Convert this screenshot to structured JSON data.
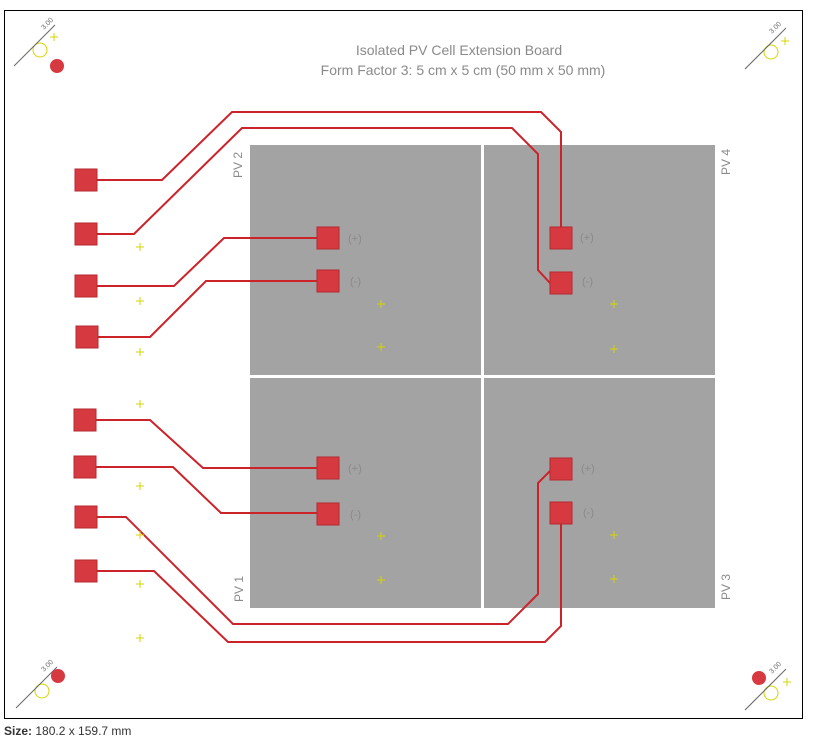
{
  "board": {
    "title_line1": "Isolated PV Cell Extension Board",
    "title_line2": "Form Factor 3: 5 cm x 5 cm (50 mm x 50 mm)",
    "colors": {
      "trace": "#cc2229",
      "pad": "#d6393f",
      "cell": "#a3a3a3",
      "cross_marker": "#d5d500",
      "outline": "#000000",
      "silkscreen": "#8a8a8a"
    },
    "cells": [
      {
        "label": "PV 2"
      },
      {
        "label": "PV 4"
      },
      {
        "label": "PV 1"
      },
      {
        "label": "PV 3"
      }
    ],
    "pad_labels": {
      "plus": "(+)",
      "minus": "(-)"
    },
    "mount_hole_label": "3.00"
  },
  "caption": {
    "size_label": "Size:",
    "size_value": "180.2 x 159.7 mm"
  }
}
